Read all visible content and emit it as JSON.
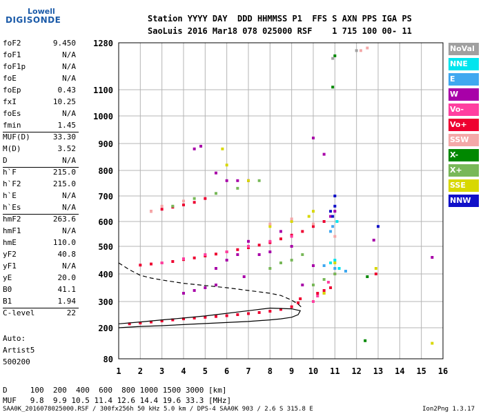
{
  "logo": {
    "line1": "Lowell",
    "line2": "DIGISONDE"
  },
  "header": {
    "labels": "Station YYYY DAY  DDD HHMMSS P1  FFS S AXN PPS IGA PS",
    "values": "SaoLuis 2016 Mar18 078 025000 RSF    1 715 100 00- 11"
  },
  "params": [
    {
      "label": "foF2",
      "value": "9.450"
    },
    {
      "label": "foF1",
      "value": "N/A"
    },
    {
      "label": "foF1p",
      "value": "N/A"
    },
    {
      "label": "foE",
      "value": "N/A"
    },
    {
      "label": "foEp",
      "value": "0.43"
    },
    {
      "label": "fxI",
      "value": "10.25"
    },
    {
      "label": "foEs",
      "value": "N/A"
    },
    {
      "label": "fmin",
      "value": "1.45"
    },
    {
      "label": "MUF(D)",
      "value": "33.30"
    },
    {
      "label": "M(D)",
      "value": "3.52"
    },
    {
      "label": "D",
      "value": "N/A"
    },
    {
      "label": "h`F",
      "value": "215.0"
    },
    {
      "label": "h`F2",
      "value": "215.0"
    },
    {
      "label": "h`E",
      "value": "N/A"
    },
    {
      "label": "h`Es",
      "value": "N/A"
    },
    {
      "label": "hmF2",
      "value": "263.6"
    },
    {
      "label": "hmF1",
      "value": "N/A"
    },
    {
      "label": "hmE",
      "value": "110.0"
    },
    {
      "label": "yF2",
      "value": "40.8"
    },
    {
      "label": "yF1",
      "value": "N/A"
    },
    {
      "label": "yE",
      "value": "20.0"
    },
    {
      "label": "B0",
      "value": "41.1"
    },
    {
      "label": "B1",
      "value": "1.94"
    },
    {
      "label": "C-level",
      "value": "22"
    }
  ],
  "auto": {
    "line1": "Auto:",
    "line2": "Artist5",
    "line3": "500200"
  },
  "footer": {
    "d_row": "D     100  200  400  600  800 1000 1500 3000 [km]",
    "muf_row": "MUF   9.8  9.9 10.5 11.4 12.6 14.4 19.6 33.3 [MHz]",
    "file_line": "SAA0K_2016078025000.RSF / 300fx256h 50 kHz 5.0 km / DPS-4 SAA0K 903 / 2.6 S 315.8 E",
    "version": "Ion2Png 1.3.17"
  },
  "legend": [
    {
      "label": "NoVal",
      "color": "#a0a0a0"
    },
    {
      "label": "NNE",
      "color": "#00e5ee"
    },
    {
      "label": "E",
      "color": "#3fa8f0"
    },
    {
      "label": "W",
      "color": "#a800a8"
    },
    {
      "label": "Vo-",
      "color": "#ff3fa0"
    },
    {
      "label": "Vo+",
      "color": "#ee0030"
    },
    {
      "label": "SSW",
      "color": "#f4a8a8"
    },
    {
      "label": "X-",
      "color": "#008800"
    },
    {
      "label": "X+",
      "color": "#78b858"
    },
    {
      "label": "SSE",
      "color": "#d8d800"
    },
    {
      "label": "NNW",
      "color": "#1010c8"
    }
  ],
  "chart_data": {
    "type": "scatter",
    "title": "",
    "xlabel": "",
    "ylabel": "",
    "xlim": [
      1,
      16
    ],
    "ylim": [
      80,
      1280
    ],
    "x_ticks": [
      1,
      2,
      3,
      4,
      5,
      6,
      7,
      8,
      9,
      10,
      11,
      12,
      13,
      14,
      15,
      16
    ],
    "y_ticks": [
      80,
      200,
      300,
      400,
      500,
      600,
      700,
      800,
      900,
      1000,
      1100,
      1280
    ],
    "grid": true,
    "series": [
      {
        "name": "Vo+",
        "color": "#ee0030",
        "points": [
          [
            1.5,
            215
          ],
          [
            2.0,
            218
          ],
          [
            2.5,
            222
          ],
          [
            3.0,
            226
          ],
          [
            3.5,
            230
          ],
          [
            4.0,
            234
          ],
          [
            4.5,
            237
          ],
          [
            5.0,
            240
          ],
          [
            5.5,
            243
          ],
          [
            6.0,
            246
          ],
          [
            6.5,
            250
          ],
          [
            7.0,
            254
          ],
          [
            7.5,
            258
          ],
          [
            8.0,
            263
          ],
          [
            8.5,
            270
          ],
          [
            9.0,
            280
          ],
          [
            9.3,
            295
          ],
          [
            9.4,
            310
          ],
          [
            2.0,
            432
          ],
          [
            2.5,
            436
          ],
          [
            3.0,
            440
          ],
          [
            3.5,
            445
          ],
          [
            4.0,
            452
          ],
          [
            4.5,
            458
          ],
          [
            5.0,
            465
          ],
          [
            5.5,
            472
          ],
          [
            6.0,
            480
          ],
          [
            6.5,
            488
          ],
          [
            7.0,
            495
          ],
          [
            7.5,
            505
          ],
          [
            8.0,
            515
          ],
          [
            8.5,
            530
          ],
          [
            9.0,
            545
          ],
          [
            9.5,
            560
          ],
          [
            10.0,
            580
          ],
          [
            10.5,
            600
          ],
          [
            2.5,
            640
          ],
          [
            3.0,
            648
          ],
          [
            3.5,
            656
          ],
          [
            4.0,
            665
          ],
          [
            4.5,
            675
          ],
          [
            5.0,
            690
          ],
          [
            10.2,
            330
          ],
          [
            10.5,
            340
          ],
          [
            10.8,
            350
          ],
          [
            12.9,
            400
          ]
        ]
      },
      {
        "name": "W",
        "color": "#a800a8",
        "points": [
          [
            4.0,
            330
          ],
          [
            4.5,
            340
          ],
          [
            5.0,
            350
          ],
          [
            5.5,
            360
          ],
          [
            5.5,
            420
          ],
          [
            6.0,
            450
          ],
          [
            6.5,
            470
          ],
          [
            6.8,
            390
          ],
          [
            7.0,
            520
          ],
          [
            7.5,
            470
          ],
          [
            8.0,
            480
          ],
          [
            8.5,
            560
          ],
          [
            9.0,
            500
          ],
          [
            9.5,
            360
          ],
          [
            10.0,
            430
          ],
          [
            4.5,
            880
          ],
          [
            4.8,
            890
          ],
          [
            5.5,
            790
          ],
          [
            6.0,
            760
          ],
          [
            6.5,
            760
          ],
          [
            7.0,
            760
          ],
          [
            10.0,
            920
          ],
          [
            10.5,
            860
          ],
          [
            12.8,
            525
          ],
          [
            15.5,
            460
          ],
          [
            10.8,
            620
          ],
          [
            11.0,
            640
          ]
        ]
      },
      {
        "name": "Vo-",
        "color": "#ff3fa0",
        "points": [
          [
            3.0,
            440
          ],
          [
            4.0,
            455
          ],
          [
            5.0,
            470
          ],
          [
            6.0,
            480
          ],
          [
            7.0,
            500
          ],
          [
            8.0,
            520
          ],
          [
            9.0,
            540
          ],
          [
            10.0,
            300
          ],
          [
            10.2,
            320
          ],
          [
            10.5,
            330
          ],
          [
            10.7,
            370
          ],
          [
            11.0,
            400
          ]
        ]
      },
      {
        "name": "X+",
        "color": "#78b858",
        "points": [
          [
            3.5,
            660
          ],
          [
            4.5,
            690
          ],
          [
            5.5,
            710
          ],
          [
            6.5,
            730
          ],
          [
            7.5,
            760
          ],
          [
            8.0,
            420
          ],
          [
            8.5,
            440
          ],
          [
            9.0,
            450
          ],
          [
            9.5,
            470
          ],
          [
            10.0,
            360
          ],
          [
            10.5,
            380
          ],
          [
            11.0,
            400
          ]
        ]
      },
      {
        "name": "X-",
        "color": "#008800",
        "points": [
          [
            10.9,
            1110
          ],
          [
            11.0,
            1230
          ],
          [
            12.4,
            150
          ],
          [
            12.5,
            390
          ]
        ]
      },
      {
        "name": "SSE",
        "color": "#d8d800",
        "points": [
          [
            5.8,
            880
          ],
          [
            6.0,
            820
          ],
          [
            7.0,
            760
          ],
          [
            8.0,
            580
          ],
          [
            9.0,
            600
          ],
          [
            9.8,
            620
          ],
          [
            10.0,
            640
          ],
          [
            10.5,
            330
          ],
          [
            11.0,
            440
          ],
          [
            12.9,
            420
          ],
          [
            15.5,
            140
          ]
        ]
      },
      {
        "name": "SSW",
        "color": "#f4a8a8",
        "points": [
          [
            2.5,
            640
          ],
          [
            3.0,
            660
          ],
          [
            4.0,
            680
          ],
          [
            8.0,
            590
          ],
          [
            9.0,
            610
          ],
          [
            10.0,
            590
          ],
          [
            11.0,
            540
          ],
          [
            12.2,
            1250
          ],
          [
            12.5,
            1260
          ]
        ]
      },
      {
        "name": "E",
        "color": "#3fa8f0",
        "points": [
          [
            10.5,
            430
          ],
          [
            11.0,
            420
          ],
          [
            11.5,
            410
          ],
          [
            10.8,
            560
          ],
          [
            10.9,
            580
          ]
        ]
      },
      {
        "name": "NNE",
        "color": "#00e5ee",
        "points": [
          [
            10.8,
            440
          ],
          [
            11.0,
            450
          ],
          [
            11.2,
            420
          ],
          [
            11.1,
            600
          ]
        ]
      },
      {
        "name": "NNW",
        "color": "#1010c8",
        "points": [
          [
            10.8,
            640
          ],
          [
            11.0,
            660
          ],
          [
            11.0,
            700
          ],
          [
            10.9,
            620
          ],
          [
            13.0,
            580
          ]
        ]
      },
      {
        "name": "NoVal",
        "color": "#a0a0a0",
        "points": [
          [
            12.0,
            1250
          ],
          [
            10.9,
            1220
          ]
        ]
      }
    ],
    "profile_solid": {
      "x": [
        1.0,
        2.0,
        3.0,
        4.0,
        5.0,
        6.0,
        7.0,
        8.0,
        8.5,
        9.0,
        9.3,
        9.4,
        9.0,
        8.0,
        7.0,
        6.0,
        5.0,
        4.0,
        3.0,
        2.0,
        1.0
      ],
      "y": [
        200,
        205,
        208,
        212,
        216,
        220,
        224,
        230,
        234,
        240,
        250,
        265,
        272,
        275,
        265,
        255,
        245,
        237,
        230,
        222,
        215
      ]
    },
    "profile_dashed": {
      "x": [
        1.0,
        1.5,
        2.0,
        2.5,
        3.0,
        3.5,
        4.0,
        5.0,
        6.0,
        7.0,
        8.0,
        8.5,
        9.0,
        9.3,
        9.5
      ],
      "y": [
        440,
        415,
        395,
        385,
        378,
        372,
        366,
        358,
        350,
        340,
        330,
        322,
        305,
        290,
        275
      ]
    }
  }
}
